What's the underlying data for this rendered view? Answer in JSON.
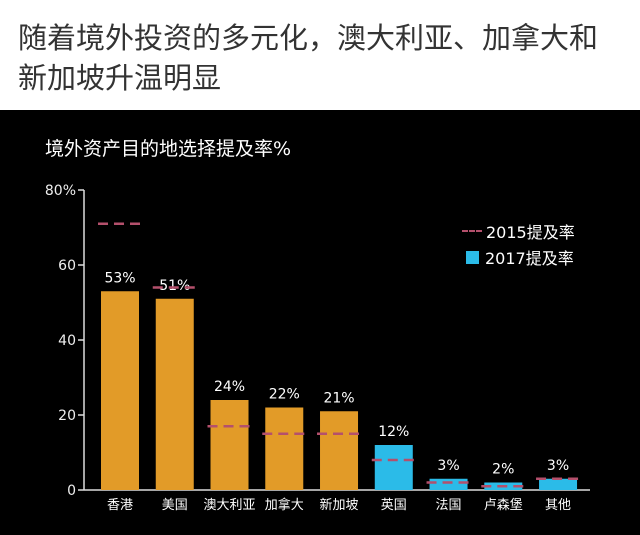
{
  "headline": "随着境外投资的多元化，澳大利亚、加拿大和新加坡升温明显",
  "chart_data": {
    "type": "bar",
    "title": "境外资产目的地选择提及率%",
    "categories": [
      "香港",
      "美国",
      "澳大利亚",
      "加拿大",
      "新加坡",
      "英国",
      "法国",
      "卢森堡",
      "其他"
    ],
    "series": [
      {
        "name": "2017提及率",
        "values": [
          53,
          51,
          24,
          22,
          21,
          12,
          3,
          2,
          3
        ],
        "labels": [
          "53%",
          "51%",
          "24%",
          "22%",
          "21%",
          "12%",
          "3%",
          "2%",
          "3%"
        ],
        "colors": [
          "#e29b28",
          "#e29b28",
          "#e29b28",
          "#e29b28",
          "#e29b28",
          "#2bbbe8",
          "#2bbbe8",
          "#2bbbe8",
          "#2bbbe8"
        ]
      },
      {
        "name": "2015提及率",
        "values": [
          71,
          54,
          17,
          15,
          15,
          8,
          2,
          1,
          3
        ],
        "style": "dashed",
        "color": "#b4506c"
      }
    ],
    "yticks": [
      "80%",
      "60",
      "40",
      "20",
      "0"
    ],
    "ylim": [
      0,
      80
    ],
    "legend": "top-right",
    "grid": false
  }
}
